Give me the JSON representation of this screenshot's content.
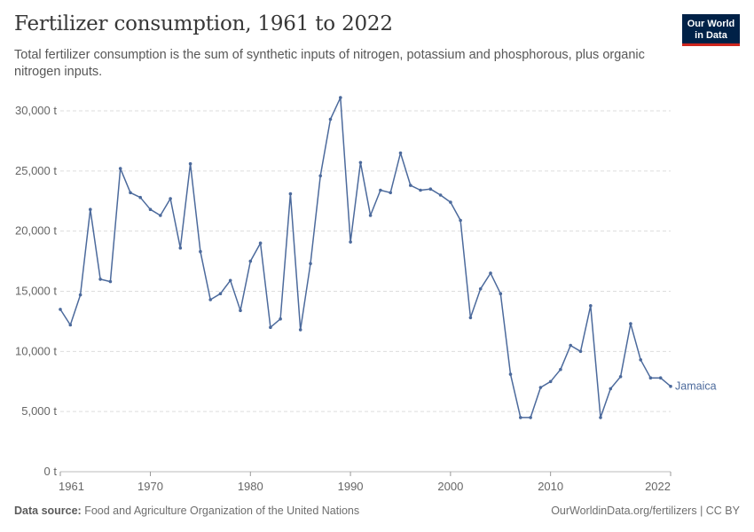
{
  "header": {
    "title": "Fertilizer consumption, 1961 to 2022",
    "subtitle": "Total fertilizer consumption is the sum of synthetic inputs of nitrogen, potassium and phosphorous, plus organic nitrogen inputs."
  },
  "logo": {
    "line1": "Our World",
    "line2": "in Data"
  },
  "footer": {
    "source_label": "Data source:",
    "source_text": "Food and Agriculture Organization of the United Nations",
    "right_text": "OurWorldinData.org/fertilizers | CC BY"
  },
  "colors": {
    "series": "#4c6a9c",
    "grid": "#dddddd",
    "axis_text": "#666666"
  },
  "chart_data": {
    "type": "line",
    "title": "Fertilizer consumption, 1961 to 2022",
    "xlabel": "",
    "ylabel": "",
    "xlim": [
      1961,
      2022
    ],
    "ylim": [
      0,
      30000
    ],
    "yticks": [
      0,
      5000,
      10000,
      15000,
      20000,
      25000,
      30000
    ],
    "ytick_labels": [
      "0 t",
      "5,000 t",
      "10,000 t",
      "15,000 t",
      "20,000 t",
      "25,000 t",
      "30,000 t"
    ],
    "xticks": [
      1961,
      1970,
      1980,
      1990,
      2000,
      2010,
      2022
    ],
    "xtick_labels": [
      "1961",
      "1970",
      "1980",
      "1990",
      "2000",
      "2010",
      "2022"
    ],
    "grid": "horizontal dashed",
    "series": [
      {
        "name": "Jamaica",
        "x": [
          1961,
          1962,
          1963,
          1964,
          1965,
          1966,
          1967,
          1968,
          1969,
          1970,
          1971,
          1972,
          1973,
          1974,
          1975,
          1976,
          1977,
          1978,
          1979,
          1980,
          1981,
          1982,
          1983,
          1984,
          1985,
          1986,
          1987,
          1988,
          1989,
          1990,
          1991,
          1992,
          1993,
          1994,
          1995,
          1996,
          1997,
          1998,
          1999,
          2000,
          2001,
          2002,
          2003,
          2004,
          2005,
          2006,
          2007,
          2008,
          2009,
          2010,
          2011,
          2012,
          2013,
          2014,
          2015,
          2016,
          2017,
          2018,
          2019,
          2020,
          2021,
          2022
        ],
        "values": [
          13500,
          12200,
          14700,
          21800,
          16000,
          15800,
          25200,
          23200,
          22800,
          21800,
          21300,
          22700,
          18600,
          25600,
          18300,
          14300,
          14800,
          15900,
          13400,
          17500,
          19000,
          12000,
          12700,
          23100,
          11800,
          17300,
          24600,
          29300,
          31100,
          19100,
          25700,
          21300,
          23400,
          23200,
          26500,
          23800,
          23400,
          23500,
          23000,
          22400,
          20900,
          12800,
          15200,
          16500,
          14800,
          8100,
          4500,
          4500,
          7000,
          7500,
          8500,
          10500,
          10000,
          13800,
          4500,
          6900,
          7900,
          12300,
          9300,
          7800,
          7800,
          7100
        ]
      }
    ]
  }
}
